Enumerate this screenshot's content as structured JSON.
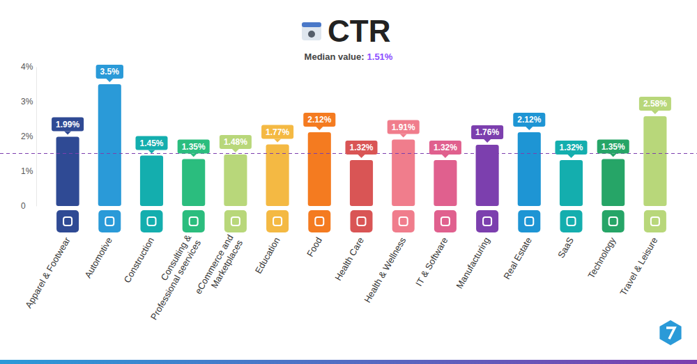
{
  "chart_data": {
    "type": "bar",
    "title": "CTR",
    "subtitle": "Median value:",
    "median": {
      "value": 1.51,
      "label": "1.51%"
    },
    "categories": [
      "Apparel & Footwear",
      "Automotive",
      "Construction",
      "Consulting & Professional seervices",
      "eCommerce and Marketplaces",
      "Education",
      "Food",
      "Health Care",
      "Health & Wellness",
      "IT & Software",
      "Manufacturing",
      "Real Estate",
      "SaaS",
      "Technology",
      "Travel & Leisure"
    ],
    "values": [
      1.99,
      3.5,
      1.45,
      1.35,
      1.48,
      1.77,
      2.12,
      1.32,
      1.91,
      1.32,
      1.76,
      2.12,
      1.32,
      1.35,
      2.58
    ],
    "value_labels": [
      "1.99%",
      "3.5%",
      "1.45%",
      "1.35%",
      "1.48%",
      "1.77%",
      "2.12%",
      "1.32%",
      "1.91%",
      "1.32%",
      "1.76%",
      "2.12%",
      "1.32%",
      "1.35%",
      "2.58%"
    ],
    "colors": [
      "#2f4a94",
      "#2a9ad8",
      "#14aeae",
      "#2bbd7e",
      "#b8d77a",
      "#f4b943",
      "#f47b20",
      "#d95555",
      "#f07d8c",
      "#e0608e",
      "#7c3fae",
      "#1e95d4",
      "#14aeae",
      "#26a567",
      "#b8d77a"
    ],
    "ylim": [
      0,
      4
    ],
    "yticks": [
      0,
      {
        "value": 1,
        "label": "1%"
      },
      {
        "value": 2,
        "label": "2%"
      },
      {
        "value": 3,
        "label": "3%"
      },
      {
        "value": 4,
        "label": "4%"
      }
    ],
    "grid": false,
    "data_labels": true
  }
}
